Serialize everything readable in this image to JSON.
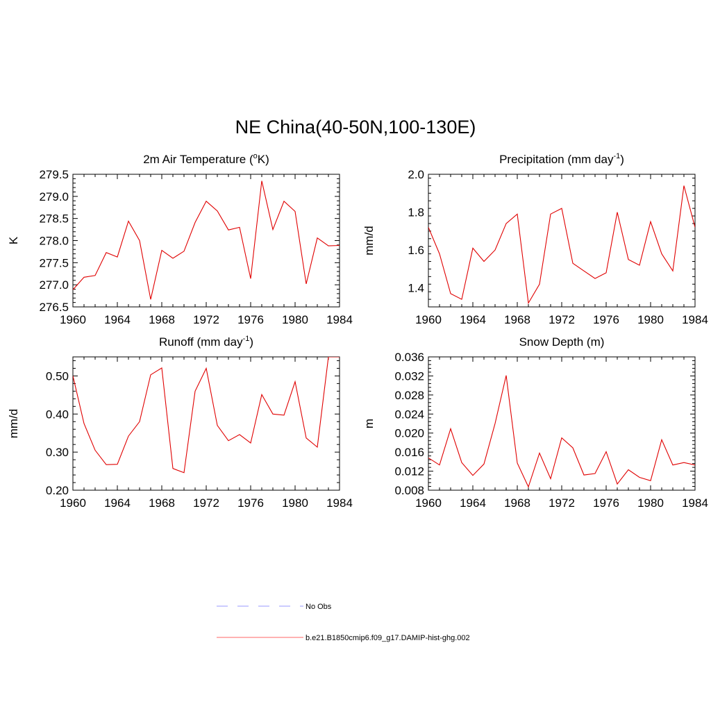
{
  "title": "NE China(40-50N,100-130E)",
  "legend": [
    {
      "label": "No Obs",
      "color": "#9999ff",
      "dash": true
    },
    {
      "label": "b.e21.B1850cmip6.f09_g17.DAMIP-hist-ghg.002",
      "color": "#ff6666",
      "dash": false
    }
  ],
  "series_color": "#e00000",
  "chart_data": [
    {
      "type": "line",
      "title": "2m Air Temperature (",
      "title_sup_o": "o",
      "title_after": "K)",
      "ylabel": "K",
      "xlim": [
        1960,
        1984
      ],
      "ylim": [
        276.5,
        279.5
      ],
      "xticks": [
        "1960",
        "1964",
        "1968",
        "1972",
        "1976",
        "1980",
        "1984"
      ],
      "yticks": [
        "276.5",
        "277.0",
        "277.5",
        "278.0",
        "278.5",
        "279.0",
        "279.5"
      ],
      "x": [
        1960,
        1961,
        1962,
        1963,
        1964,
        1965,
        1966,
        1967,
        1968,
        1969,
        1970,
        1971,
        1972,
        1973,
        1974,
        1975,
        1976,
        1977,
        1978,
        1979,
        1980,
        1981,
        1982,
        1983,
        1984
      ],
      "y": [
        276.89,
        277.17,
        277.21,
        277.73,
        277.63,
        278.44,
        278.0,
        276.67,
        277.78,
        277.6,
        277.76,
        278.41,
        278.89,
        278.67,
        278.24,
        278.3,
        277.14,
        279.35,
        278.25,
        278.89,
        278.66,
        277.02,
        278.06,
        277.88,
        277.89
      ]
    },
    {
      "type": "line",
      "title": "Precipitation (mm day",
      "title_sup": "-1",
      "title_after": ")",
      "ylabel": "mm/d",
      "xlim": [
        1960,
        1984
      ],
      "ylim": [
        1.3,
        2.0
      ],
      "xticks": [
        "1960",
        "1964",
        "1968",
        "1972",
        "1976",
        "1980",
        "1984"
      ],
      "yticks": [
        "1.4",
        "1.6",
        "1.8",
        "2.0"
      ],
      "x": [
        1960,
        1961,
        1962,
        1963,
        1964,
        1965,
        1966,
        1967,
        1968,
        1969,
        1970,
        1971,
        1972,
        1973,
        1974,
        1975,
        1976,
        1977,
        1978,
        1979,
        1980,
        1981,
        1982,
        1983,
        1984
      ],
      "y": [
        1.72,
        1.58,
        1.37,
        1.34,
        1.61,
        1.54,
        1.6,
        1.74,
        1.79,
        1.32,
        1.42,
        1.79,
        1.82,
        1.53,
        1.49,
        1.45,
        1.48,
        1.8,
        1.55,
        1.52,
        1.75,
        1.58,
        1.49,
        1.94,
        1.72
      ]
    },
    {
      "type": "line",
      "title": "Runoff (mm day",
      "title_sup": "-1",
      "title_after": ")",
      "ylabel": "mm/d",
      "xlim": [
        1960,
        1984
      ],
      "ylim": [
        0.2,
        0.55
      ],
      "xticks": [
        "1960",
        "1964",
        "1968",
        "1972",
        "1976",
        "1980",
        "1984"
      ],
      "yticks": [
        "0.20",
        "0.30",
        "0.40",
        "0.50"
      ],
      "x": [
        1960,
        1961,
        1962,
        1963,
        1964,
        1965,
        1966,
        1967,
        1968,
        1969,
        1970,
        1971,
        1972,
        1973,
        1974,
        1975,
        1976,
        1977,
        1978,
        1979,
        1980,
        1981,
        1982,
        1983,
        1984
      ],
      "y": [
        0.5,
        0.375,
        0.305,
        0.267,
        0.268,
        0.342,
        0.38,
        0.503,
        0.521,
        0.257,
        0.246,
        0.46,
        0.52,
        0.37,
        0.33,
        0.346,
        0.324,
        0.451,
        0.4,
        0.397,
        0.485,
        0.337,
        0.313,
        0.55,
        0.55
      ]
    },
    {
      "type": "line",
      "title": "Snow Depth (m)",
      "ylabel": "m",
      "xlim": [
        1960,
        1984
      ],
      "ylim": [
        0.008,
        0.036
      ],
      "xticks": [
        "1960",
        "1964",
        "1968",
        "1972",
        "1976",
        "1980",
        "1984"
      ],
      "yticks": [
        "0.008",
        "0.012",
        "0.016",
        "0.020",
        "0.024",
        "0.028",
        "0.032",
        "0.036"
      ],
      "x": [
        1960,
        1961,
        1962,
        1963,
        1964,
        1965,
        1966,
        1967,
        1968,
        1969,
        1970,
        1971,
        1972,
        1973,
        1974,
        1975,
        1976,
        1977,
        1978,
        1979,
        1980,
        1981,
        1982,
        1983,
        1984
      ],
      "y": [
        0.0148,
        0.0133,
        0.0209,
        0.0138,
        0.0111,
        0.0135,
        0.022,
        0.0321,
        0.0137,
        0.0087,
        0.0158,
        0.0104,
        0.019,
        0.0169,
        0.0112,
        0.0115,
        0.0161,
        0.0093,
        0.0123,
        0.0107,
        0.01,
        0.0186,
        0.0133,
        0.0138,
        0.0133
      ]
    }
  ]
}
